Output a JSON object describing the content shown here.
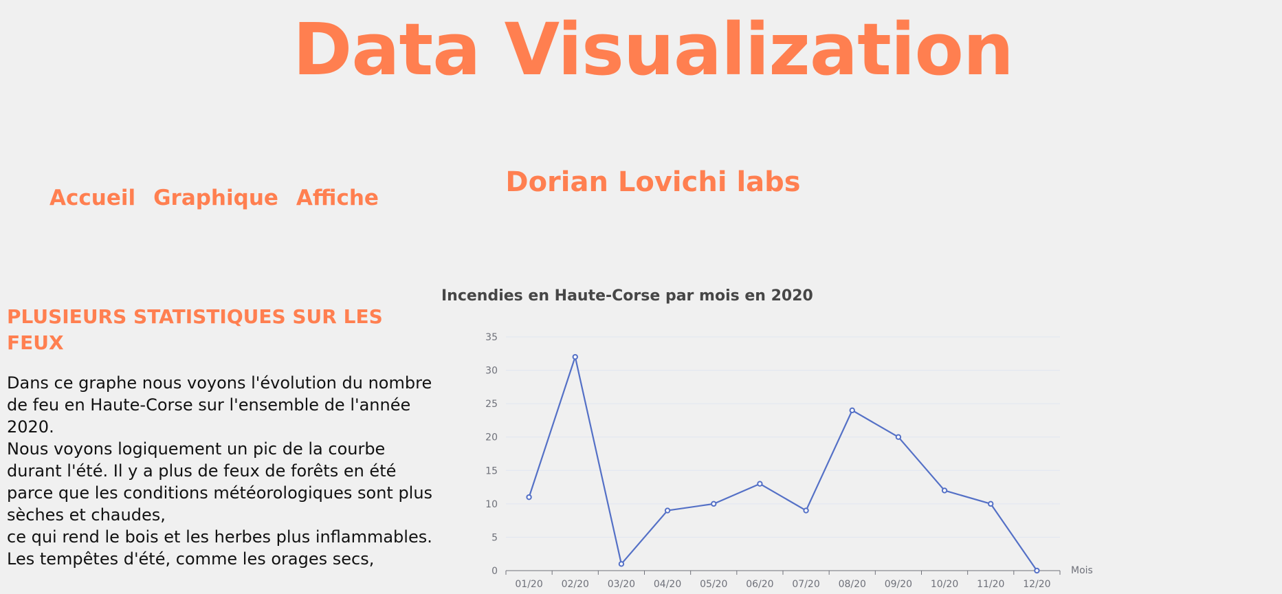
{
  "header": {
    "title": "Data Visualization"
  },
  "nav": {
    "items": [
      "Accueil",
      "Graphique",
      "Affiche"
    ]
  },
  "lab_name": "Dorian Lovichi labs",
  "section": {
    "heading": "PLUSIEURS STATISTIQUES SUR LES FEUX",
    "paragraphs": [
      "Dans ce graphe nous voyons l'évolution du nombre de feu en Haute-Corse sur l'ensemble de l'année 2020.",
      "Nous voyons logiquement un pic de la courbe durant l'été. Il y a plus de feux de forêts en été parce que les conditions météorologiques sont plus sèches et chaudes,",
      "ce qui rend le bois et les herbes plus inflammables.",
      "Les tempêtes d'été, comme les orages secs,"
    ]
  },
  "colors": {
    "accent": "#ff7f50",
    "series": "#5470c6",
    "grid": "#e0e6f1",
    "axis": "#6e7079"
  },
  "chart_data": {
    "type": "line",
    "title": "Incendies en Haute-Corse par mois en 2020",
    "xlabel": "Mois",
    "ylabel": "",
    "categories": [
      "01/20",
      "02/20",
      "03/20",
      "04/20",
      "05/20",
      "06/20",
      "07/20",
      "08/20",
      "09/20",
      "10/20",
      "11/20",
      "12/20"
    ],
    "values": [
      11,
      32,
      1,
      9,
      10,
      13,
      9,
      24,
      20,
      12,
      10,
      0
    ],
    "ylim": [
      0,
      35
    ],
    "yticks": [
      0,
      5,
      10,
      15,
      20,
      25,
      30,
      35
    ],
    "grid": true,
    "legend": false
  }
}
